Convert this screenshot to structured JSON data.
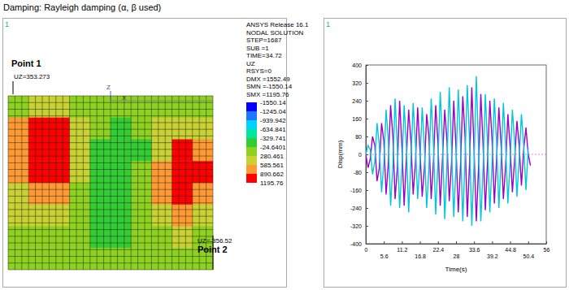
{
  "title": "Damping: Rayleigh damping (α, β used)",
  "panel_labels": [
    "1",
    "1"
  ],
  "contour": {
    "info": [
      "ANSYS Release 16.1",
      "NODAL SOLUTION",
      "STEP=1687",
      "SUB =1",
      "TIME=34.72",
      "UZ",
      "RSYS=0",
      "DMX =1552.49",
      "SMN =-1550.14",
      "SMX =1195.76"
    ],
    "levels": [
      -1550.14,
      -1245.04,
      -939.942,
      -634.841,
      -329.741,
      -24.6401,
      280.461,
      585.561,
      890.662,
      1195.76
    ],
    "colors": [
      "#0000ff",
      "#1a78ff",
      "#00d2ff",
      "#00e6a0",
      "#32cd32",
      "#8cd21e",
      "#c8d232",
      "#ff9a32",
      "#ff0000"
    ],
    "cells": [
      [
        200,
        300,
        300,
        200,
        100,
        50,
        100,
        200,
        250,
        200
      ],
      [
        600,
        950,
        1000,
        500,
        0,
        -150,
        0,
        300,
        500,
        400
      ],
      [
        700,
        1100,
        1050,
        450,
        -200,
        -300,
        -100,
        500,
        900,
        700
      ],
      [
        650,
        1000,
        950,
        400,
        -200,
        -300,
        0,
        700,
        1100,
        900
      ],
      [
        500,
        800,
        700,
        250,
        -150,
        -250,
        0,
        600,
        1000,
        800
      ],
      [
        300,
        500,
        400,
        100,
        -100,
        -150,
        0,
        400,
        600,
        500
      ],
      [
        150,
        250,
        200,
        50,
        -50,
        -100,
        0,
        200,
        300,
        250
      ],
      [
        100,
        150,
        100,
        50,
        0,
        0,
        50,
        100,
        150,
        100
      ]
    ],
    "annotations": [
      "Point 1",
      "UZ=353.273",
      "UZ=-356.52",
      "Point 2"
    ],
    "triad": [
      "Z",
      "X"
    ]
  },
  "chart_data": {
    "type": "line",
    "xlabel": "Time(s)",
    "ylabel": "Disp(mm)",
    "x": [
      0,
      0.7,
      1.4,
      2.1,
      2.8,
      3.5,
      4.2,
      4.9,
      5.6,
      6.3,
      7,
      7.7,
      8.4,
      9.1,
      9.8,
      10.5,
      11.2,
      11.9,
      12.6,
      13.3,
      14,
      14.7,
      15.4,
      16.1,
      16.8,
      17.5,
      18.2,
      18.9,
      19.6,
      20.3,
      21,
      21.7,
      22.4,
      23.1,
      23.8,
      24.5,
      25.2,
      25.9,
      26.6,
      27.3,
      28,
      28.7,
      29.4,
      30.1,
      30.8,
      31.5,
      32.2,
      32.9,
      33.6,
      34.3,
      35,
      35.7,
      36.4,
      37.1,
      37.8,
      38.5,
      39.2,
      39.9,
      40.6,
      41.3,
      42,
      42.7,
      43.4,
      44.1,
      44.8,
      45.5,
      46.2,
      46.9,
      47.6,
      48.3,
      49,
      49.7,
      50.4,
      51.1
    ],
    "series": [
      {
        "color": "#9900cc",
        "values": [
          0,
          -60,
          -20,
          80,
          40,
          -120,
          -60,
          140,
          60,
          -180,
          -40,
          220,
          80,
          -200,
          -60,
          240,
          40,
          -230,
          -20,
          200,
          60,
          -180,
          -40,
          210,
          20,
          -190,
          -60,
          180,
          80,
          -200,
          -30,
          220,
          50,
          -230,
          -20,
          200,
          60,
          -210,
          -40,
          240,
          30,
          -260,
          -50,
          260,
          80,
          -280,
          -40,
          300,
          20,
          -300,
          -60,
          270,
          40,
          -250,
          -30,
          240,
          60,
          -220,
          -20,
          210,
          40,
          -200,
          -50,
          180,
          30,
          -170,
          -20,
          150,
          40,
          -140,
          20,
          120,
          0,
          -50
        ]
      },
      {
        "color": "#00c8dc",
        "values": [
          0,
          40,
          20,
          -90,
          -30,
          140,
          40,
          -170,
          -40,
          200,
          60,
          -230,
          -50,
          250,
          30,
          -240,
          -60,
          220,
          40,
          -260,
          -30,
          230,
          50,
          -200,
          -40,
          210,
          30,
          -240,
          -60,
          250,
          40,
          -270,
          -30,
          280,
          60,
          -290,
          -40,
          300,
          30,
          -280,
          -50,
          290,
          40,
          -300,
          -20,
          310,
          60,
          -320,
          -40,
          350,
          30,
          -300,
          -60,
          270,
          40,
          -260,
          -30,
          250,
          50,
          -240,
          -20,
          230,
          40,
          -220,
          -30,
          200,
          50,
          -190,
          -20,
          180,
          40,
          -160,
          30,
          null
        ]
      }
    ],
    "xlim": [
      0,
      56
    ],
    "xticks": [
      0,
      5.6,
      11.2,
      16.8,
      22.4,
      28,
      33.6,
      39.2,
      44.8,
      50.4,
      56
    ],
    "ylim": [
      -400,
      400
    ],
    "yticks": [
      -400,
      -320,
      -240,
      -160,
      -80,
      0,
      80,
      160,
      240,
      320,
      400
    ],
    "grid": false
  }
}
